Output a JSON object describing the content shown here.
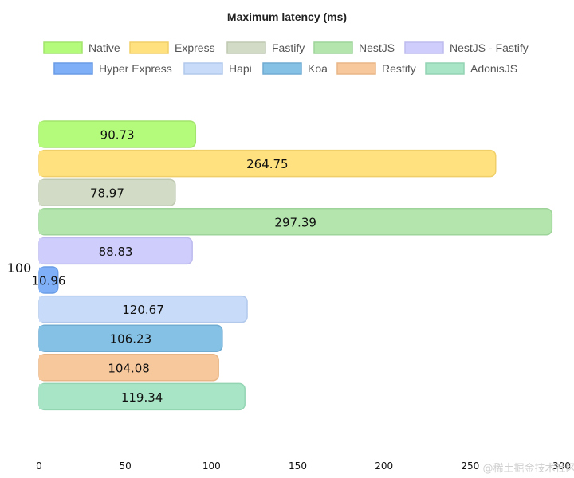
{
  "chart_data": {
    "type": "bar",
    "orientation": "horizontal",
    "title": "Maximum latency (ms)",
    "categories": [
      "100"
    ],
    "series": [
      {
        "name": "Native",
        "values": [
          90.73
        ],
        "value_label": "90.73",
        "fill": "#b4fb7b",
        "stroke": "#a2e46d"
      },
      {
        "name": "Express",
        "values": [
          264.75
        ],
        "value_label": "264.75",
        "fill": "#ffe17f",
        "stroke": "#f0cf68"
      },
      {
        "name": "Fastify",
        "values": [
          78.97
        ],
        "value_label": "78.97",
        "fill": "#d1dbc5",
        "stroke": "#bfc9b2"
      },
      {
        "name": "NestJS",
        "values": [
          297.39
        ],
        "value_label": "297.39",
        "fill": "#b3e5ad",
        "stroke": "#9ed49a"
      },
      {
        "name": "NestJS - Fastify",
        "values": [
          88.83
        ],
        "value_label": "88.83",
        "fill": "#cfcdfb",
        "stroke": "#bdbbee"
      },
      {
        "name": "Hyper Express",
        "values": [
          10.96
        ],
        "value_label": "10.96",
        "fill": "#7fb0f7",
        "stroke": "#6a9ce6"
      },
      {
        "name": "Hapi",
        "values": [
          120.67
        ],
        "value_label": "120.67",
        "fill": "#c8dcfa",
        "stroke": "#b2c9ec"
      },
      {
        "name": "Koa",
        "values": [
          106.23
        ],
        "value_label": "106.23",
        "fill": "#85c1e5",
        "stroke": "#70acd2"
      },
      {
        "name": "Restify",
        "values": [
          104.08
        ],
        "value_label": "104.08",
        "fill": "#f8c89d",
        "stroke": "#e8b686"
      },
      {
        "name": "AdonisJS",
        "values": [
          119.34
        ],
        "value_label": "119.34",
        "fill": "#a8e5c6",
        "stroke": "#93d4b3"
      }
    ],
    "xlim": [
      0,
      300
    ],
    "x_ticks": [
      0,
      50,
      100,
      150,
      200,
      250,
      300
    ],
    "xlabel": "",
    "ylabel": "",
    "grid": false,
    "legend_position": "top"
  },
  "watermark": "@稀土掘金技术社区"
}
